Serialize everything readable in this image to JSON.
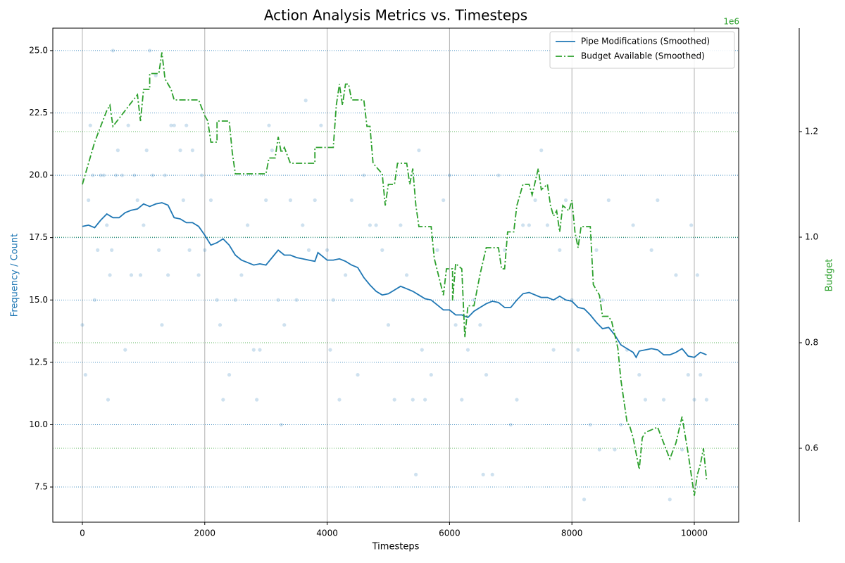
{
  "chart_data": {
    "type": "line",
    "title": "Action Analysis Metrics vs. Timesteps",
    "x_label": "Timesteps",
    "y_label": "Frequency / Count",
    "y2_label": "Budget",
    "y2_offset_label": "1e6",
    "xlim": [
      -483,
      10725
    ],
    "xticks": [
      0,
      2000,
      4000,
      6000,
      8000,
      10000
    ],
    "ylim": [
      6.09,
      25.9
    ],
    "yticks": [
      7.5,
      {
        "value": 10,
        "label": "10.0"
      },
      12.5,
      {
        "value": 15,
        "label": "15.0"
      },
      17.5,
      {
        "value": 20,
        "label": "20.0"
      },
      22.5,
      {
        "value": 25,
        "label": "25.0"
      }
    ],
    "y2lim": [
      460000,
      1396000
    ],
    "y2ticks": [
      {
        "value": 600000,
        "label": "0.6"
      },
      {
        "value": 800000,
        "label": "0.8"
      },
      {
        "value": 1000000,
        "label": "1.0"
      },
      {
        "value": 1200000,
        "label": "1.2"
      }
    ],
    "grid": true,
    "legend": "upper right",
    "y_color": "#1f77b4",
    "y2_color": "#2ca02c",
    "scatter": {
      "color": "#1f77b4",
      "x": [
        0,
        50,
        100,
        130,
        170,
        200,
        250,
        300,
        350,
        400,
        420,
        450,
        480,
        500,
        550,
        580,
        650,
        700,
        750,
        800,
        850,
        900,
        950,
        1000,
        1050,
        1100,
        1150,
        1200,
        1250,
        1300,
        1350,
        1400,
        1450,
        1500,
        1600,
        1650,
        1700,
        1750,
        1800,
        1900,
        1950,
        2000,
        2100,
        2200,
        2250,
        2300,
        2400,
        2500,
        2600,
        2700,
        2800,
        2850,
        2900,
        3000,
        3050,
        3100,
        3200,
        3250,
        3300,
        3400,
        3500,
        3600,
        3650,
        3700,
        3800,
        3900,
        4000,
        4050,
        4100,
        4200,
        4300,
        4400,
        4500,
        4600,
        4700,
        4800,
        4900,
        5000,
        5100,
        5200,
        5300,
        5400,
        5450,
        5500,
        5550,
        5600,
        5700,
        5800,
        5900,
        6000,
        6100,
        6200,
        6300,
        6400,
        6500,
        6550,
        6600,
        6700,
        6800,
        6900,
        7000,
        7100,
        7200,
        7300,
        7400,
        7500,
        7600,
        7700,
        7800,
        7900,
        8000,
        8100,
        8200,
        8300,
        8400,
        8450,
        8500,
        8600,
        8700,
        8800,
        8900,
        9000,
        9100,
        9200,
        9300,
        9400,
        9500,
        9600,
        9700,
        9800,
        9900,
        9950,
        10000,
        10050,
        10100,
        10200
      ],
      "values": [
        14,
        12,
        19,
        22,
        20,
        15,
        17,
        20,
        20,
        18,
        11,
        16,
        17,
        25,
        20,
        21,
        20,
        13,
        22,
        16,
        20,
        19,
        16,
        18,
        21,
        25,
        20,
        24,
        17,
        14,
        20,
        16,
        22,
        22,
        21,
        19,
        22,
        17,
        21,
        16,
        20,
        17,
        19,
        15,
        14,
        11,
        12,
        15,
        16,
        18,
        13,
        11,
        13,
        19,
        22,
        21,
        15,
        10,
        14,
        19,
        15,
        18,
        23,
        17,
        19,
        22,
        17,
        13,
        15,
        11,
        16,
        19,
        12,
        20,
        18,
        18,
        17,
        14,
        11,
        18,
        16,
        11,
        8,
        21,
        13,
        11,
        12,
        17,
        19,
        20,
        14,
        11,
        13,
        15,
        14,
        8,
        12,
        8,
        20,
        17,
        10,
        11,
        18,
        18,
        19,
        21,
        18,
        13,
        17,
        19,
        15,
        13,
        7,
        10,
        17,
        9,
        15,
        19,
        9,
        10,
        13,
        18,
        12,
        11,
        17,
        19,
        11,
        7,
        16,
        9,
        12,
        18,
        11,
        16,
        12,
        11
      ]
    },
    "series": [
      {
        "name": "Pipe Modifications (Smoothed)",
        "color": "#1f77b4",
        "linestyle": "solid",
        "axis": "y",
        "x": [
          0,
          100,
          200,
          300,
          400,
          500,
          600,
          700,
          800,
          900,
          1000,
          1100,
          1200,
          1300,
          1400,
          1500,
          1600,
          1700,
          1800,
          1900,
          2000,
          2100,
          2200,
          2300,
          2400,
          2500,
          2600,
          2700,
          2800,
          2900,
          3000,
          3100,
          3200,
          3300,
          3400,
          3500,
          3600,
          3700,
          3800,
          3850,
          4000,
          4100,
          4200,
          4300,
          4400,
          4500,
          4600,
          4700,
          4800,
          4900,
          5000,
          5100,
          5200,
          5300,
          5400,
          5500,
          5600,
          5700,
          5800,
          5900,
          6000,
          6100,
          6200,
          6300,
          6400,
          6500,
          6600,
          6700,
          6800,
          6900,
          7000,
          7100,
          7200,
          7300,
          7400,
          7500,
          7600,
          7700,
          7800,
          7900,
          8000,
          8100,
          8200,
          8300,
          8400,
          8500,
          8600,
          8700,
          8800,
          8900,
          9000,
          9050,
          9100,
          9200,
          9300,
          9400,
          9500,
          9600,
          9700,
          9800,
          9900,
          10000,
          10100,
          10200
        ],
        "values": [
          17.95,
          18.0,
          17.9,
          18.2,
          18.45,
          18.3,
          18.3,
          18.5,
          18.6,
          18.65,
          18.85,
          18.75,
          18.85,
          18.9,
          18.8,
          18.3,
          18.25,
          18.1,
          18.1,
          17.95,
          17.6,
          17.2,
          17.3,
          17.45,
          17.2,
          16.8,
          16.6,
          16.5,
          16.4,
          16.45,
          16.4,
          16.7,
          17.0,
          16.8,
          16.8,
          16.7,
          16.65,
          16.6,
          16.55,
          16.9,
          16.6,
          16.6,
          16.65,
          16.55,
          16.4,
          16.3,
          15.9,
          15.6,
          15.35,
          15.2,
          15.25,
          15.4,
          15.55,
          15.45,
          15.35,
          15.2,
          15.05,
          15.0,
          14.8,
          14.6,
          14.6,
          14.4,
          14.4,
          14.3,
          14.55,
          14.7,
          14.85,
          14.95,
          14.9,
          14.7,
          14.7,
          15.0,
          15.25,
          15.3,
          15.2,
          15.1,
          15.1,
          15.0,
          15.15,
          15.0,
          14.95,
          14.7,
          14.65,
          14.4,
          14.1,
          13.85,
          13.9,
          13.6,
          13.2,
          13.05,
          12.9,
          12.7,
          12.95,
          13.0,
          13.05,
          13.0,
          12.8,
          12.8,
          12.9,
          13.05,
          12.75,
          12.7,
          12.9,
          12.8
        ]
      },
      {
        "name": "Budget Available (Smoothed)",
        "color": "#2ca02c",
        "linestyle": "dashdot",
        "axis": "y2",
        "x": [
          0,
          100,
          200,
          300,
          400,
          450,
          500,
          700,
          900,
          950,
          1000,
          1100,
          1100,
          1250,
          1300,
          1350,
          1450,
          1500,
          1900,
          2000,
          2050,
          2100,
          2200,
          2200,
          2400,
          2450,
          2500,
          3000,
          3050,
          3150,
          3200,
          3250,
          3300,
          3400,
          3700,
          3800,
          3800,
          4100,
          4150,
          4200,
          4250,
          4300,
          4350,
          4400,
          4600,
          4650,
          4700,
          4750,
          4900,
          4950,
          5000,
          5100,
          5150,
          5300,
          5350,
          5400,
          5450,
          5500,
          5700,
          5750,
          5900,
          5950,
          6050,
          6050,
          6100,
          6200,
          6250,
          6300,
          6400,
          6500,
          6600,
          6800,
          6850,
          6900,
          6950,
          7050,
          7100,
          7200,
          7300,
          7350,
          7450,
          7500,
          7600,
          7650,
          7700,
          7750,
          7800,
          7850,
          7950,
          8000,
          8050,
          8100,
          8150,
          8300,
          8350,
          8450,
          8500,
          8600,
          8650,
          8750,
          8800,
          8900,
          8950,
          9000,
          9100,
          9150,
          9200,
          9400,
          9500,
          9600,
          9700,
          9800,
          9900,
          10000,
          10050,
          10100,
          10150,
          10200
        ],
        "values": [
          1100000,
          1140000,
          1180000,
          1210000,
          1240000,
          1250000,
          1210000,
          1240000,
          1270000,
          1220000,
          1280000,
          1280000,
          1310000,
          1310000,
          1350000,
          1300000,
          1280000,
          1260000,
          1260000,
          1230000,
          1220000,
          1180000,
          1180000,
          1220000,
          1220000,
          1160000,
          1120000,
          1120000,
          1150000,
          1150000,
          1190000,
          1160000,
          1170000,
          1140000,
          1140000,
          1140000,
          1170000,
          1170000,
          1250000,
          1290000,
          1250000,
          1290000,
          1290000,
          1260000,
          1260000,
          1210000,
          1210000,
          1140000,
          1120000,
          1060000,
          1100000,
          1100000,
          1140000,
          1140000,
          1100000,
          1130000,
          1060000,
          1020000,
          1020000,
          960000,
          890000,
          940000,
          940000,
          880000,
          950000,
          940000,
          810000,
          870000,
          870000,
          930000,
          980000,
          980000,
          940000,
          940000,
          1010000,
          1010000,
          1060000,
          1100000,
          1100000,
          1080000,
          1130000,
          1090000,
          1100000,
          1060000,
          1040000,
          1050000,
          1010000,
          1060000,
          1050000,
          1070000,
          1010000,
          980000,
          1020000,
          1020000,
          910000,
          890000,
          850000,
          850000,
          840000,
          790000,
          730000,
          650000,
          640000,
          620000,
          560000,
          620000,
          630000,
          640000,
          610000,
          580000,
          610000,
          660000,
          590000,
          510000,
          550000,
          570000,
          600000,
          540000
        ]
      }
    ]
  }
}
